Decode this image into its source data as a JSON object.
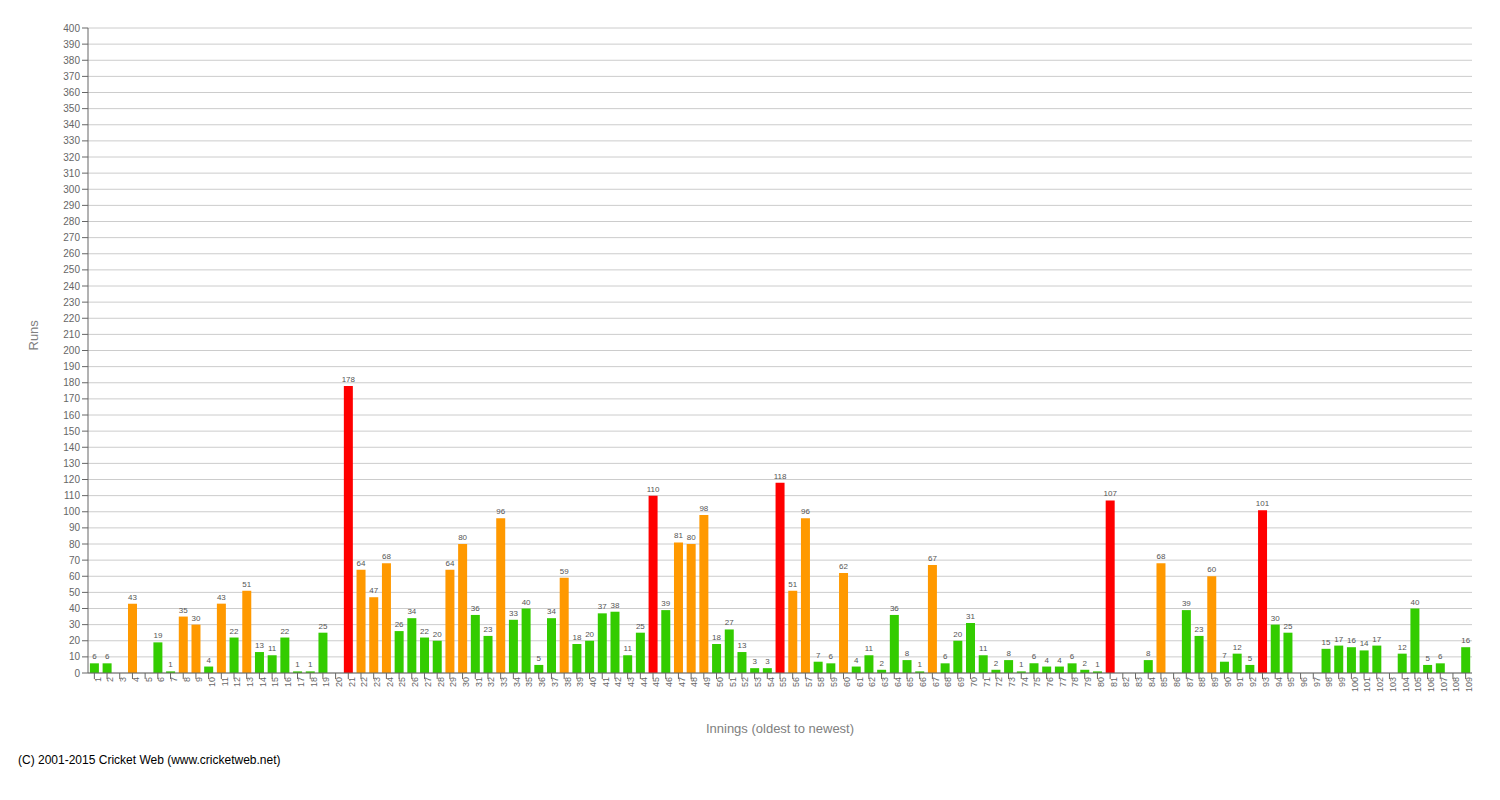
{
  "chart_data": {
    "type": "bar",
    "xlabel": "Innings (oldest to newest)",
    "ylabel": "Runs",
    "categories": [
      "1",
      "2",
      "3",
      "4",
      "5",
      "6",
      "7",
      "8",
      "9",
      "10",
      "11",
      "12",
      "13",
      "14",
      "15",
      "16",
      "17",
      "18",
      "19",
      "20",
      "21",
      "22",
      "23",
      "24",
      "25",
      "26",
      "27",
      "28",
      "29",
      "30",
      "31",
      "32",
      "33",
      "34",
      "35",
      "36",
      "37",
      "38",
      "39",
      "40",
      "41",
      "42",
      "43",
      "44",
      "45",
      "46",
      "47",
      "48",
      "49",
      "50",
      "51",
      "52",
      "53",
      "54",
      "55",
      "56",
      "57",
      "58",
      "59",
      "60",
      "61",
      "62",
      "63",
      "64",
      "65",
      "66",
      "67",
      "68",
      "69",
      "70",
      "71",
      "72",
      "73",
      "74",
      "75",
      "76",
      "77",
      "78",
      "79",
      "80",
      "81",
      "82",
      "83",
      "84",
      "85",
      "86",
      "87",
      "88",
      "89",
      "90",
      "91",
      "92",
      "93",
      "94",
      "95",
      "96",
      "97",
      "98",
      "99",
      "100",
      "101",
      "102",
      "103",
      "104",
      "105",
      "106",
      "107",
      "108",
      "109"
    ],
    "values": [
      6,
      6,
      0,
      43,
      0,
      19,
      1,
      35,
      30,
      4,
      43,
      22,
      51,
      13,
      11,
      22,
      1,
      1,
      25,
      0,
      178,
      64,
      47,
      68,
      26,
      34,
      22,
      20,
      64,
      80,
      36,
      23,
      96,
      33,
      40,
      5,
      34,
      59,
      18,
      20,
      37,
      38,
      11,
      25,
      110,
      39,
      81,
      80,
      98,
      18,
      27,
      13,
      3,
      3,
      118,
      51,
      96,
      7,
      6,
      62,
      4,
      11,
      2,
      36,
      8,
      1,
      67,
      6,
      20,
      31,
      11,
      2,
      8,
      1,
      6,
      4,
      4,
      6,
      2,
      1,
      107,
      0,
      0,
      8,
      68,
      0,
      39,
      23,
      60,
      7,
      12,
      5,
      101,
      30,
      25,
      0,
      0,
      15,
      17,
      16,
      14,
      17,
      0,
      12,
      40,
      5,
      6,
      0,
      16
    ],
    "value_labels": [
      "6",
      "6",
      null,
      "43",
      null,
      "19",
      "1",
      "35",
      "30",
      "4",
      "43",
      "22",
      "51",
      "13",
      "11",
      "22",
      "1",
      "1",
      "25",
      null,
      "178",
      "64",
      "47",
      "68",
      "26",
      "34",
      "22",
      "20",
      "64",
      "80",
      "36",
      "23",
      "96",
      "33",
      "40",
      "5",
      "34",
      "59",
      "18",
      "20",
      "37",
      "38",
      "11",
      "25",
      "110",
      "39",
      "81",
      "80",
      "98",
      "18",
      "27",
      "13",
      "3",
      "3",
      "118",
      "51",
      "96",
      "7",
      "6",
      "62",
      "4",
      "11",
      "2",
      "36",
      "8",
      "1",
      "67",
      "6",
      "20",
      "31",
      "11",
      "2",
      "8",
      "1",
      "6",
      "4",
      "4",
      "6",
      "2",
      "1",
      "107",
      null,
      null,
      "8",
      "68",
      null,
      "39",
      "23",
      "60",
      "7",
      "12",
      "5",
      "101",
      "30",
      "25",
      null,
      null,
      "15",
      "17",
      "16",
      "14",
      "17",
      null,
      "12",
      "40",
      "5",
      "6",
      null,
      "16"
    ],
    "colors": [
      "#33cc00",
      "#33cc00",
      "#33cc00",
      "#ff9900",
      "#33cc00",
      "#33cc00",
      "#33cc00",
      "#ff9900",
      "#ff9900",
      "#33cc00",
      "#ff9900",
      "#33cc00",
      "#ff9900",
      "#33cc00",
      "#33cc00",
      "#33cc00",
      "#33cc00",
      "#33cc00",
      "#33cc00",
      "#33cc00",
      "#ff0000",
      "#ff9900",
      "#ff9900",
      "#ff9900",
      "#33cc00",
      "#33cc00",
      "#33cc00",
      "#33cc00",
      "#ff9900",
      "#ff9900",
      "#33cc00",
      "#33cc00",
      "#ff9900",
      "#33cc00",
      "#33cc00",
      "#33cc00",
      "#33cc00",
      "#ff9900",
      "#33cc00",
      "#33cc00",
      "#33cc00",
      "#33cc00",
      "#33cc00",
      "#33cc00",
      "#ff0000",
      "#33cc00",
      "#ff9900",
      "#ff9900",
      "#ff9900",
      "#33cc00",
      "#33cc00",
      "#33cc00",
      "#33cc00",
      "#33cc00",
      "#ff0000",
      "#ff9900",
      "#ff9900",
      "#33cc00",
      "#33cc00",
      "#ff9900",
      "#33cc00",
      "#33cc00",
      "#33cc00",
      "#33cc00",
      "#33cc00",
      "#33cc00",
      "#ff9900",
      "#33cc00",
      "#33cc00",
      "#33cc00",
      "#33cc00",
      "#33cc00",
      "#33cc00",
      "#33cc00",
      "#33cc00",
      "#33cc00",
      "#33cc00",
      "#33cc00",
      "#33cc00",
      "#33cc00",
      "#ff0000",
      "#33cc00",
      "#33cc00",
      "#33cc00",
      "#ff9900",
      "#33cc00",
      "#33cc00",
      "#33cc00",
      "#ff9900",
      "#33cc00",
      "#33cc00",
      "#33cc00",
      "#ff0000",
      "#33cc00",
      "#33cc00",
      "#33cc00",
      "#33cc00",
      "#33cc00",
      "#33cc00",
      "#33cc00",
      "#33cc00",
      "#33cc00",
      "#33cc00",
      "#33cc00",
      "#33cc00",
      "#33cc00",
      "#33cc00",
      "#33cc00",
      "#33cc00"
    ],
    "ylim": [
      0,
      400
    ],
    "yticks": [
      0,
      10,
      20,
      30,
      40,
      50,
      60,
      70,
      80,
      90,
      100,
      110,
      120,
      130,
      140,
      150,
      160,
      170,
      180,
      190,
      200,
      210,
      220,
      230,
      240,
      250,
      260,
      270,
      280,
      290,
      300,
      310,
      320,
      330,
      340,
      350,
      360,
      370,
      380,
      390,
      400
    ],
    "grid": true,
    "data_labels": true,
    "annotations": [
      "(C) 2001-2015 Cricket Web (www.cricketweb.net)"
    ]
  }
}
